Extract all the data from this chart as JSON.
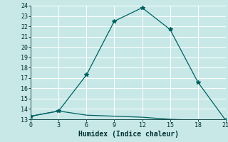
{
  "xlabel": "Humidex (Indice chaleur)",
  "ylabel": "",
  "bg_color": "#c8e8e8",
  "grid_color": "#ffffff",
  "line_color": "#006060",
  "line1_x": [
    0,
    3,
    6,
    9,
    12,
    15,
    18,
    21
  ],
  "line1_y": [
    13.3,
    13.8,
    17.3,
    22.5,
    23.8,
    21.7,
    16.6,
    12.9
  ],
  "line2_x": [
    0,
    3,
    6,
    9,
    12,
    15,
    18,
    21
  ],
  "line2_y": [
    13.3,
    13.8,
    13.4,
    13.3,
    13.2,
    13.0,
    12.9,
    12.9
  ],
  "xlim": [
    0,
    21
  ],
  "ylim": [
    13,
    24
  ],
  "xticks": [
    0,
    3,
    6,
    9,
    12,
    15,
    18,
    21
  ],
  "yticks": [
    13,
    14,
    15,
    16,
    17,
    18,
    19,
    20,
    21,
    22,
    23,
    24
  ],
  "marker": "*",
  "markersize": 4,
  "linewidth": 0.9,
  "tick_fontsize": 6,
  "xlabel_fontsize": 7
}
